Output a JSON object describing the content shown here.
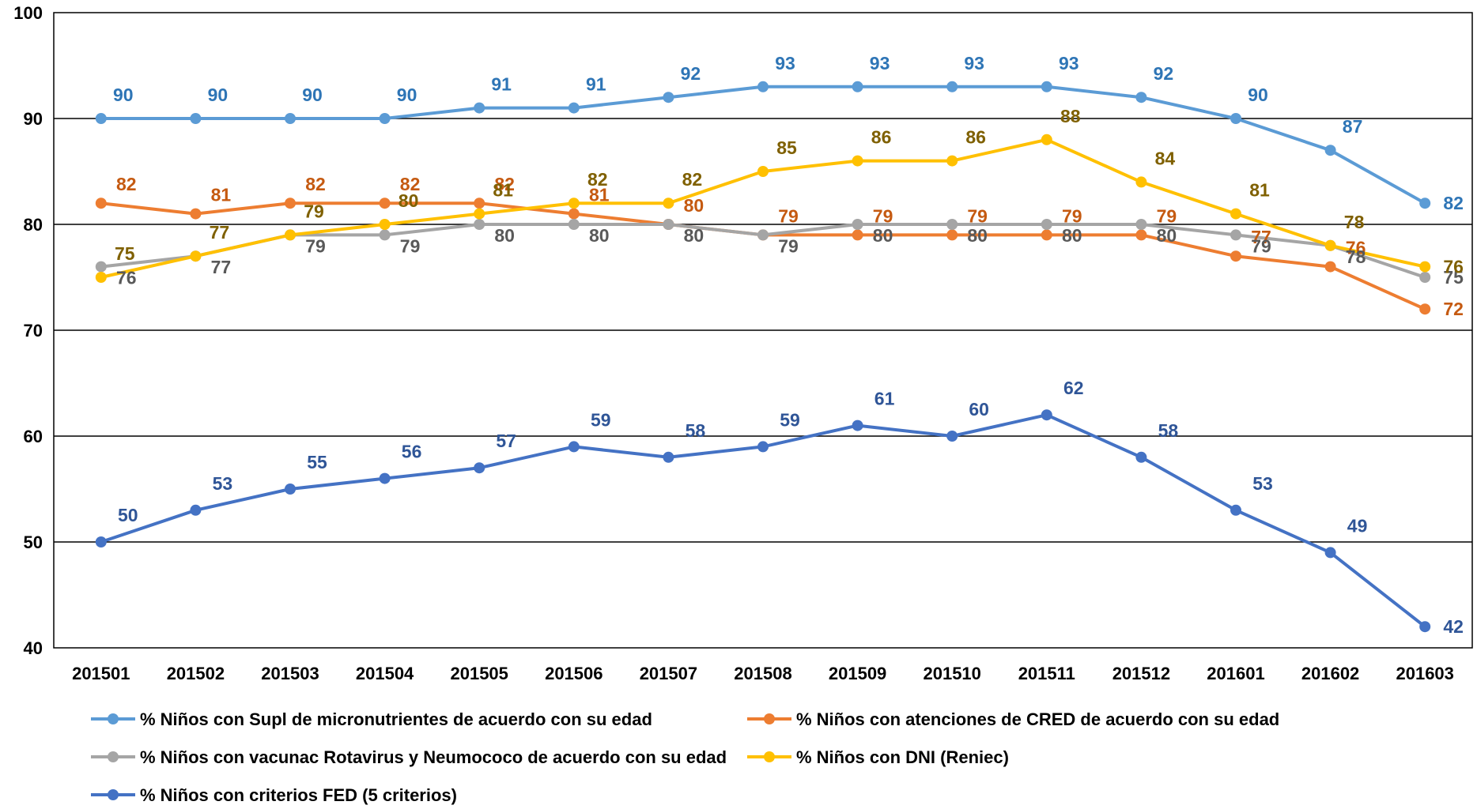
{
  "chart_data": {
    "type": "line",
    "title": "",
    "xlabel": "",
    "ylabel": "",
    "ylim": [
      40,
      100
    ],
    "yticks": [
      40,
      50,
      60,
      70,
      80,
      90,
      100
    ],
    "grid": true,
    "legend_position": "bottom",
    "categories": [
      "201501",
      "201502",
      "201503",
      "201504",
      "201505",
      "201506",
      "201507",
      "201508",
      "201509",
      "201510",
      "201511",
      "201512",
      "201601",
      "201602",
      "201603"
    ],
    "series": [
      {
        "name": "% Niños con Supl de micronutrientes de acuerdo con su edad",
        "color": "#5b9bd5",
        "label_color": "#2e75b6",
        "values": [
          90,
          90,
          90,
          90,
          91,
          91,
          92,
          93,
          93,
          93,
          93,
          92,
          90,
          87,
          82
        ]
      },
      {
        "name": "% Niños  con atenciones de CRED de acuerdo con su edad",
        "color": "#ed7d31",
        "label_color": "#c55a11",
        "values": [
          82,
          81,
          82,
          82,
          82,
          81,
          80,
          79,
          79,
          79,
          79,
          79,
          77,
          76,
          72
        ]
      },
      {
        "name": "% Niños con vacunac Rotavirus y Neumococo de acuerdo con su edad",
        "color": "#a5a5a5",
        "label_color": "#595959",
        "values": [
          76,
          77,
          79,
          79,
          80,
          80,
          80,
          79,
          80,
          80,
          80,
          80,
          79,
          78,
          75
        ]
      },
      {
        "name": "% Niños con DNI (Reniec)",
        "color": "#ffc000",
        "label_color": "#7f6000",
        "values": [
          75,
          77,
          79,
          80,
          81,
          82,
          82,
          85,
          86,
          86,
          88,
          84,
          81,
          78,
          76
        ]
      },
      {
        "name": "% Niños con criterios FED (5 criterios)",
        "color": "#4472c4",
        "label_color": "#2f5597",
        "values": [
          50,
          53,
          55,
          56,
          57,
          59,
          58,
          59,
          61,
          60,
          62,
          58,
          53,
          49,
          42
        ]
      }
    ]
  }
}
